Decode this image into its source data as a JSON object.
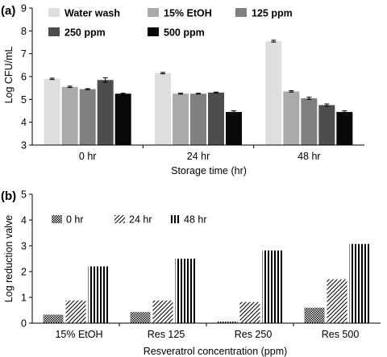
{
  "chart_data": [
    {
      "panel": "(a)",
      "type": "bar",
      "categories": [
        "0 hr",
        "24 hr",
        "48 hr"
      ],
      "series": [
        {
          "name": "Water wash",
          "values": [
            5.9,
            6.15,
            7.55
          ],
          "errors": [
            0.03,
            0.03,
            0.04
          ],
          "color": "#dedede"
        },
        {
          "name": "15% EtOH",
          "values": [
            5.55,
            5.25,
            5.35
          ],
          "errors": [
            0.03,
            0.02,
            0.03
          ],
          "color": "#aaaaaa"
        },
        {
          "name": "125 ppm",
          "values": [
            5.45,
            5.25,
            5.05
          ],
          "errors": [
            0.02,
            0.02,
            0.05
          ],
          "color": "#808080"
        },
        {
          "name": "250 ppm",
          "values": [
            5.85,
            5.3,
            4.75
          ],
          "errors": [
            0.1,
            0.02,
            0.05
          ],
          "color": "#4d4d4d"
        },
        {
          "name": "500 ppm",
          "values": [
            5.25,
            4.45,
            4.45
          ],
          "errors": [
            0.02,
            0.05,
            0.05
          ],
          "color": "#080808"
        }
      ],
      "xlabel": "Storage time (hr)",
      "ylabel": "Log CFU/mL",
      "ylim": [
        3,
        9
      ],
      "yticks": [
        "3",
        "4",
        "5",
        "6",
        "7",
        "8",
        "9"
      ],
      "legend": "top, 3 columns",
      "grid": false
    },
    {
      "panel": "(b)",
      "type": "bar",
      "categories": [
        "15% EtOH",
        "Res 125",
        "Res 250",
        "Res 500"
      ],
      "series": [
        {
          "name": "0 hr",
          "values": [
            0.33,
            0.43,
            0.06,
            0.6
          ],
          "pattern": "crosshatch"
        },
        {
          "name": "24 hr",
          "values": [
            0.88,
            0.88,
            0.82,
            1.7
          ],
          "pattern": "diagonal"
        },
        {
          "name": "48 hr",
          "values": [
            2.2,
            2.5,
            2.82,
            3.07
          ],
          "pattern": "vertical"
        }
      ],
      "xlabel": "Resveratrol concentration (ppm)",
      "ylabel": "Log reduction valve",
      "ylim": [
        0,
        5
      ],
      "yticks": [
        "0",
        "1",
        "2",
        "3",
        "4",
        "5"
      ],
      "legend": "top-left, single row",
      "grid": false
    }
  ]
}
